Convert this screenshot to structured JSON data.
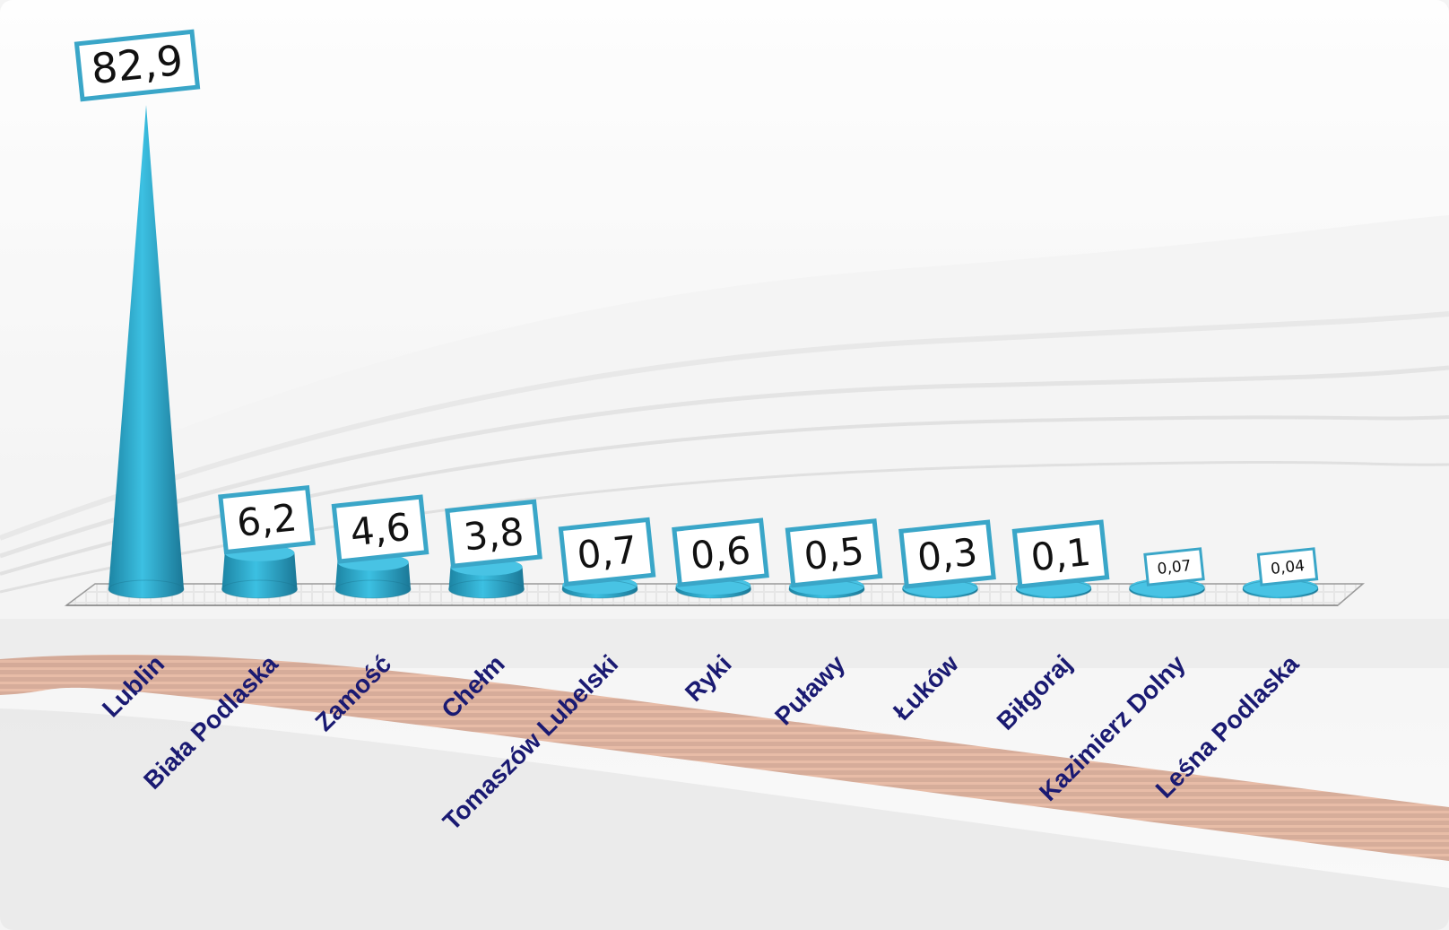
{
  "chart_data": {
    "type": "bar",
    "bar_shape": "cone",
    "categories": [
      "Lublin",
      "Biała Podlaska",
      "Zamość",
      "Chełm",
      "Tomaszów Lubelski",
      "Ryki",
      "Puławy",
      "Łuków",
      "Biłgoraj",
      "Kazimierz Dolny",
      "Leśna Podlaska"
    ],
    "values": [
      82.9,
      6.2,
      4.6,
      3.8,
      0.7,
      0.6,
      0.5,
      0.3,
      0.1,
      0.07,
      0.04
    ],
    "value_labels": [
      "82,9",
      "6,2",
      "4,6",
      "3,8",
      "0,7",
      "0,6",
      "0,5",
      "0,3",
      "0,1",
      "0,07",
      "0,04"
    ],
    "title": "",
    "xlabel": "",
    "ylabel": "",
    "ylim": [
      0,
      82.9
    ],
    "grid": false,
    "legend": "none"
  },
  "colors": {
    "bar_fill": "#2aa3c6",
    "bar_dark": "#1a7f9c",
    "label_box_border": "#3aa6c8",
    "category_label": "#1a1a72"
  }
}
